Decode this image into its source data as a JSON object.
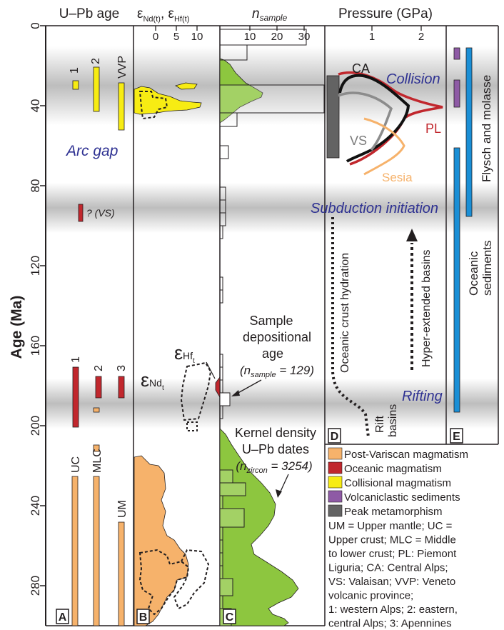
{
  "axis": {
    "label": "Age  (Ma)",
    "ticks": [
      "0",
      "40",
      "80",
      "120",
      "160",
      "200",
      "240",
      "280"
    ]
  },
  "panel_a": {
    "title": "U–Pb age",
    "badge": "A",
    "labels": [
      "1",
      "2",
      "VVP",
      "1",
      "2",
      "3",
      "UC",
      "MLC",
      "UM"
    ],
    "arc_gap": "Arc gap",
    "vs_note": "? (VS)"
  },
  "panel_b": {
    "title": "ε",
    "sub_nd": "Nd(t)",
    "sep": ", ε",
    "sub_hf": "Hf(t)",
    "ticks": [
      "0",
      "5",
      "10"
    ],
    "eps_hf": "ε",
    "eps_hf_sub": "Hf",
    "eps_hf_subsub": "t",
    "eps_nd": "ε",
    "eps_nd_sub": "Nd",
    "eps_nd_subsub": "t",
    "badge": "B"
  },
  "panel_c": {
    "title_n": "n",
    "title_sub": "sample",
    "ticks": [
      "10",
      "20",
      "30"
    ],
    "sample_l1": "Sample",
    "sample_l2": "depositional",
    "sample_l3": "age",
    "sample_n_a": "(n",
    "sample_n_sub": "sample",
    "sample_n_b": " = 129)",
    "kernel_l1": "Kernel density",
    "kernel_l2": "U–Pb dates",
    "kernel_n_a": "(n",
    "kernel_n_sub": "zircon",
    "kernel_n_b": " = 3254)",
    "badge": "C"
  },
  "panel_d": {
    "title": "Pressure (GPa)",
    "ticks": [
      "1",
      "2"
    ],
    "ca": "CA",
    "pl": "PL",
    "vs": "VS",
    "sesia": "Sesia",
    "collision": "Collision",
    "subduction": "Subduction initiation",
    "rifting": "Rifting",
    "hydration": "Oceanic crust hydration",
    "hyper": "Hyper-extended basins",
    "rift1": "Rift",
    "rift2": "basins",
    "badge": "D"
  },
  "panel_e": {
    "flysch": "Flysch and molasse",
    "oceanic1": "Oceanic",
    "oceanic2": "sediments",
    "badge": "E"
  },
  "legend": {
    "items": [
      {
        "label": "Post-Variscan magmatism",
        "color": "#f6b26b"
      },
      {
        "label": "Oceanic magmatism",
        "color": "#c1272d"
      },
      {
        "label": "Collisional magmatism",
        "color": "#f7ec13"
      },
      {
        "label": "Volcaniclastic sediments",
        "color": "#8e5aa5"
      },
      {
        "label": "Peak metamorphism",
        "color": "#636363"
      }
    ],
    "notes": [
      "UM = Upper mantle; UC =",
      "Upper crust; MLC =  Middle",
      "to lower crust; PL: Piemont",
      "Liguria; CA: Central Alps;",
      "VS: Valaisan; VVP: Veneto",
      "volcanic province;",
      "1: western Alps; 2: eastern,",
      "central Alps; 3: Apennines"
    ]
  },
  "colors": {
    "orange": "#f6b26b",
    "red": "#c1272d",
    "yellow": "#f7ec13",
    "purple": "#8e5aa5",
    "gray": "#636363",
    "blue": "#1a8fd6",
    "green": "#8dc63f",
    "label_blue": "#2e3192",
    "sesia": "#f6b26b",
    "vs_line": "#8c8c8c"
  }
}
